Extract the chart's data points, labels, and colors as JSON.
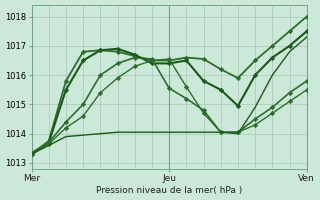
{
  "bg_color": "#cce8d8",
  "grid_color": "#a8c8b8",
  "xlabel": "Pression niveau de la mer( hPa )",
  "ylim": [
    1012.8,
    1018.4
  ],
  "yticks": [
    1013,
    1014,
    1015,
    1016,
    1017,
    1018
  ],
  "xlim": [
    0,
    48
  ],
  "xtick_positions": [
    0,
    24,
    48
  ],
  "xtick_labels": [
    "Mer",
    "Jeu",
    "Ven"
  ],
  "vlines": [
    0,
    24,
    48
  ],
  "series": [
    {
      "x": [
        0,
        3,
        6,
        9,
        12,
        15,
        18,
        21,
        24,
        27,
        30,
        33,
        36,
        39,
        42,
        45,
        48
      ],
      "y": [
        1013.3,
        1013.75,
        1015.8,
        1016.8,
        1016.85,
        1016.8,
        1016.65,
        1016.5,
        1016.5,
        1016.6,
        1016.55,
        1016.2,
        1015.9,
        1016.5,
        1017.0,
        1017.5,
        1018.0
      ],
      "color": "#2d6e2d",
      "lw": 1.3,
      "marker": "D",
      "ms": 2.2
    },
    {
      "x": [
        0,
        3,
        6,
        9,
        12,
        15,
        18,
        21,
        24,
        27,
        30,
        33,
        36,
        39,
        42,
        45,
        48
      ],
      "y": [
        1013.3,
        1013.7,
        1015.5,
        1016.5,
        1016.85,
        1016.9,
        1016.7,
        1016.4,
        1016.4,
        1016.5,
        1015.8,
        1015.5,
        1014.95,
        1016.0,
        1016.6,
        1017.0,
        1017.5
      ],
      "color": "#1a5a1a",
      "lw": 1.5,
      "marker": "D",
      "ms": 2.2
    },
    {
      "x": [
        0,
        3,
        6,
        9,
        12,
        15,
        18,
        21,
        24,
        27,
        30,
        33,
        36,
        39,
        42,
        45,
        48
      ],
      "y": [
        1013.35,
        1013.7,
        1014.4,
        1015.0,
        1016.0,
        1016.4,
        1016.6,
        1016.55,
        1015.55,
        1015.2,
        1014.8,
        1014.05,
        1014.05,
        1014.5,
        1014.9,
        1015.4,
        1015.8
      ],
      "color": "#2d6e2d",
      "lw": 1.2,
      "marker": "D",
      "ms": 2.2
    },
    {
      "x": [
        0,
        3,
        6,
        9,
        12,
        15,
        18,
        21,
        24,
        27,
        30,
        33,
        36,
        39,
        42,
        45,
        48
      ],
      "y": [
        1013.3,
        1013.65,
        1014.2,
        1014.6,
        1015.4,
        1015.9,
        1016.3,
        1016.5,
        1016.55,
        1015.6,
        1014.7,
        1014.05,
        1014.05,
        1014.3,
        1014.7,
        1015.1,
        1015.5
      ],
      "color": "#2d6e2d",
      "lw": 1.0,
      "marker": "D",
      "ms": 2.2
    },
    {
      "x": [
        0,
        3,
        6,
        9,
        12,
        15,
        18,
        21,
        24,
        27,
        30,
        33,
        36,
        39,
        42,
        45,
        48
      ],
      "y": [
        1013.3,
        1013.6,
        1013.9,
        1013.95,
        1014.0,
        1014.05,
        1014.05,
        1014.05,
        1014.05,
        1014.05,
        1014.05,
        1014.05,
        1014.0,
        1014.9,
        1016.0,
        1016.8,
        1017.3
      ],
      "color": "#1a5a1a",
      "lw": 1.0,
      "marker": null,
      "ms": 0
    }
  ]
}
